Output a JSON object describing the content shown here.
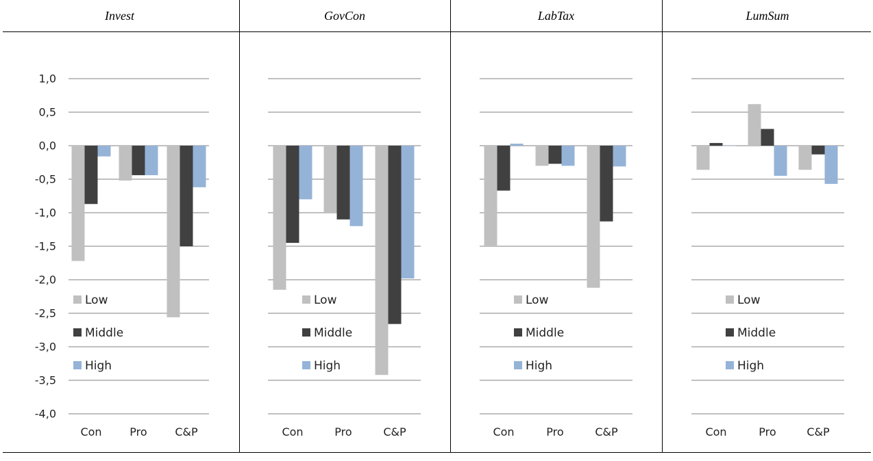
{
  "panels": [
    {
      "title": "Invest"
    },
    {
      "title": "GovCon"
    },
    {
      "title": "LabTax"
    },
    {
      "title": "LumSum"
    }
  ],
  "chart_data": [
    {
      "type": "bar",
      "title": "Invest",
      "categories": [
        "Con",
        "Pro",
        "C&P"
      ],
      "series": [
        {
          "name": "Low",
          "values": [
            -1.72,
            -0.52,
            -2.56
          ]
        },
        {
          "name": "Middle",
          "values": [
            -0.87,
            -0.44,
            -1.5
          ]
        },
        {
          "name": "High",
          "values": [
            -0.16,
            -0.44,
            -0.62
          ]
        }
      ],
      "ylim": [
        -4.0,
        1.0
      ],
      "yticks": [
        "1,0",
        "0,5",
        "0,0",
        "-0,5",
        "-1,0",
        "-1,5",
        "-2,0",
        "-2,5",
        "-3,0",
        "-3,5",
        "-4,0"
      ],
      "grid": true,
      "legend": "left"
    },
    {
      "type": "bar",
      "title": "GovCon",
      "categories": [
        "Con",
        "Pro",
        "C&P"
      ],
      "series": [
        {
          "name": "Low",
          "values": [
            -2.15,
            -1.0,
            -3.42
          ]
        },
        {
          "name": "Middle",
          "values": [
            -1.45,
            -1.1,
            -2.66
          ]
        },
        {
          "name": "High",
          "values": [
            -0.8,
            -1.2,
            -1.98
          ]
        }
      ],
      "ylim": [
        -4.0,
        1.0
      ],
      "grid": true,
      "legend": "left"
    },
    {
      "type": "bar",
      "title": "LabTax",
      "categories": [
        "Con",
        "Pro",
        "C&P"
      ],
      "series": [
        {
          "name": "Low",
          "values": [
            -1.5,
            -0.3,
            -2.12
          ]
        },
        {
          "name": "Middle",
          "values": [
            -0.67,
            -0.27,
            -1.13
          ]
        },
        {
          "name": "High",
          "values": [
            0.03,
            -0.3,
            -0.31
          ]
        }
      ],
      "ylim": [
        -4.0,
        1.0
      ],
      "grid": true,
      "legend": "left"
    },
    {
      "type": "bar",
      "title": "LumSum",
      "categories": [
        "Con",
        "Pro",
        "C&P"
      ],
      "series": [
        {
          "name": "Low",
          "values": [
            -0.36,
            0.62,
            -0.36
          ]
        },
        {
          "name": "Middle",
          "values": [
            0.04,
            0.25,
            -0.13
          ]
        },
        {
          "name": "High",
          "values": [
            0.0,
            -0.45,
            -0.57
          ]
        }
      ],
      "ylim": [
        -4.0,
        1.0
      ],
      "grid": true,
      "legend": "left"
    }
  ],
  "colors": {
    "Low": "#c0c0c0",
    "Middle": "#404040",
    "High": "#95b3d7",
    "grid": "#808080",
    "text": "#222222"
  }
}
